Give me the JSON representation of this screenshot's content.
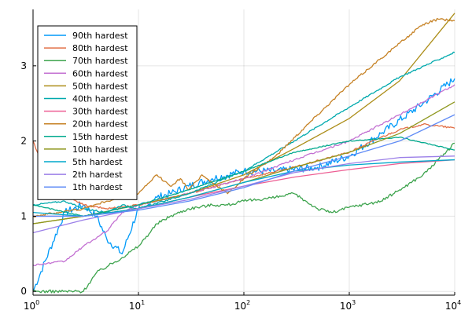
{
  "chart_data": {
    "type": "line",
    "title": "",
    "xlabel": "",
    "ylabel": "",
    "xscale": "log10",
    "xlim": [
      1,
      10000
    ],
    "ylim": [
      -0.05,
      3.75
    ],
    "grid": true,
    "legend_position": "top-left",
    "x_ticks": [
      {
        "value": 1,
        "base": "10",
        "exp": "0"
      },
      {
        "value": 10,
        "base": "10",
        "exp": "1"
      },
      {
        "value": 100,
        "base": "10",
        "exp": "2"
      },
      {
        "value": 1000,
        "base": "10",
        "exp": "3"
      },
      {
        "value": 10000,
        "base": "10",
        "exp": "4"
      }
    ],
    "y_ticks": [
      {
        "value": 0,
        "label": "0"
      },
      {
        "value": 1,
        "label": "1"
      },
      {
        "value": 2,
        "label": "2"
      },
      {
        "value": 3,
        "label": "3"
      }
    ],
    "series": [
      {
        "name": "90th hardest",
        "color": "#009AF9",
        "noise": 0.05,
        "points": [
          [
            1,
            0
          ],
          [
            2,
            1.05
          ],
          [
            3,
            1.15
          ],
          [
            4,
            1.0
          ],
          [
            5,
            0.7
          ],
          [
            7,
            0.5
          ],
          [
            10,
            1.1
          ],
          [
            15,
            1.25
          ],
          [
            20,
            1.3
          ],
          [
            30,
            1.4
          ],
          [
            50,
            1.5
          ],
          [
            100,
            1.6
          ],
          [
            200,
            1.6
          ],
          [
            500,
            1.65
          ],
          [
            1000,
            1.8
          ],
          [
            2000,
            2.1
          ],
          [
            5000,
            2.5
          ],
          [
            10000,
            2.83
          ]
        ]
      },
      {
        "name": "80th hardest",
        "color": "#E26F46",
        "noise": 0.012,
        "points": [
          [
            1,
            2.0
          ],
          [
            1.3,
            1.6
          ],
          [
            2,
            1.3
          ],
          [
            3,
            1.15
          ],
          [
            5,
            1.1
          ],
          [
            10,
            1.15
          ],
          [
            30,
            1.3
          ],
          [
            100,
            1.5
          ],
          [
            300,
            1.65
          ],
          [
            1000,
            1.85
          ],
          [
            2000,
            2.05
          ],
          [
            3000,
            2.15
          ],
          [
            5000,
            2.22
          ],
          [
            7000,
            2.2
          ],
          [
            10000,
            2.17
          ]
        ]
      },
      {
        "name": "70th hardest",
        "color": "#3EA44E",
        "noise": 0.02,
        "points": [
          [
            1,
            0
          ],
          [
            3,
            0
          ],
          [
            4,
            0.25
          ],
          [
            7,
            0.45
          ],
          [
            10,
            0.6
          ],
          [
            15,
            0.9
          ],
          [
            20,
            1.0
          ],
          [
            30,
            1.1
          ],
          [
            50,
            1.15
          ],
          [
            70,
            1.15
          ],
          [
            100,
            1.2
          ],
          [
            200,
            1.25
          ],
          [
            300,
            1.3
          ],
          [
            500,
            1.1
          ],
          [
            700,
            1.05
          ],
          [
            1000,
            1.12
          ],
          [
            2000,
            1.2
          ],
          [
            3000,
            1.35
          ],
          [
            5000,
            1.55
          ],
          [
            7000,
            1.75
          ],
          [
            10000,
            1.97
          ]
        ]
      },
      {
        "name": "60th hardest",
        "color": "#C371D2",
        "noise": 0.012,
        "points": [
          [
            1,
            0.35
          ],
          [
            2,
            0.4
          ],
          [
            3,
            0.6
          ],
          [
            5,
            0.8
          ],
          [
            7,
            1.05
          ],
          [
            10,
            1.15
          ],
          [
            30,
            1.3
          ],
          [
            100,
            1.5
          ],
          [
            300,
            1.75
          ],
          [
            1000,
            2.0
          ],
          [
            3000,
            2.35
          ],
          [
            10000,
            2.75
          ]
        ]
      },
      {
        "name": "50th hardest",
        "color": "#AC8D18",
        "noise": 0,
        "points": [
          [
            1,
            0.9
          ],
          [
            3,
            1.0
          ],
          [
            10,
            1.15
          ],
          [
            30,
            1.3
          ],
          [
            100,
            1.55
          ],
          [
            300,
            1.9
          ],
          [
            1000,
            2.3
          ],
          [
            3000,
            2.8
          ],
          [
            10000,
            3.7
          ]
        ]
      },
      {
        "name": "40th hardest",
        "color": "#00A9AD",
        "noise": 0.01,
        "points": [
          [
            1,
            1.15
          ],
          [
            2,
            1.2
          ],
          [
            3,
            1.1
          ],
          [
            5,
            1.05
          ],
          [
            7,
            1.15
          ],
          [
            10,
            1.1
          ],
          [
            30,
            1.3
          ],
          [
            100,
            1.6
          ],
          [
            300,
            2.0
          ],
          [
            1000,
            2.45
          ],
          [
            3000,
            2.85
          ],
          [
            10000,
            3.18
          ]
        ]
      },
      {
        "name": "30th hardest",
        "color": "#ED5E93",
        "noise": 0,
        "points": [
          [
            1,
            1.0
          ],
          [
            3,
            1.0
          ],
          [
            10,
            1.1
          ],
          [
            30,
            1.25
          ],
          [
            100,
            1.4
          ],
          [
            300,
            1.52
          ],
          [
            1000,
            1.62
          ],
          [
            3000,
            1.7
          ],
          [
            10000,
            1.75
          ]
        ]
      },
      {
        "name": "20th hardest",
        "color": "#C68225",
        "noise": 0.015,
        "points": [
          [
            1,
            1.0
          ],
          [
            3,
            1.1
          ],
          [
            5,
            1.2
          ],
          [
            10,
            1.3
          ],
          [
            15,
            1.55
          ],
          [
            20,
            1.4
          ],
          [
            25,
            1.5
          ],
          [
            30,
            1.35
          ],
          [
            40,
            1.55
          ],
          [
            70,
            1.3
          ],
          [
            100,
            1.5
          ],
          [
            200,
            1.8
          ],
          [
            500,
            2.35
          ],
          [
            1000,
            2.75
          ],
          [
            2000,
            3.1
          ],
          [
            3000,
            3.3
          ],
          [
            5000,
            3.55
          ],
          [
            7000,
            3.62
          ],
          [
            10000,
            3.6
          ]
        ]
      },
      {
        "name": "15th hardest",
        "color": "#00A98D",
        "noise": 0.006,
        "points": [
          [
            1,
            1.15
          ],
          [
            3,
            1.0
          ],
          [
            10,
            1.15
          ],
          [
            30,
            1.35
          ],
          [
            100,
            1.6
          ],
          [
            300,
            1.85
          ],
          [
            1000,
            2.0
          ],
          [
            3000,
            2.05
          ],
          [
            5000,
            1.98
          ],
          [
            10000,
            1.88
          ]
        ]
      },
      {
        "name": "10th hardest",
        "color": "#8E971D",
        "noise": 0,
        "points": [
          [
            1,
            0.9
          ],
          [
            3,
            1.0
          ],
          [
            10,
            1.1
          ],
          [
            30,
            1.25
          ],
          [
            100,
            1.45
          ],
          [
            300,
            1.65
          ],
          [
            1000,
            1.85
          ],
          [
            3000,
            2.1
          ],
          [
            10000,
            2.52
          ]
        ]
      },
      {
        "name": "5th hardest",
        "color": "#00A8CB",
        "noise": 0,
        "points": [
          [
            1,
            1.05
          ],
          [
            3,
            1.0
          ],
          [
            10,
            1.1
          ],
          [
            30,
            1.25
          ],
          [
            100,
            1.45
          ],
          [
            300,
            1.6
          ],
          [
            1000,
            1.68
          ],
          [
            3000,
            1.72
          ],
          [
            10000,
            1.75
          ]
        ]
      },
      {
        "name": "2th hardest",
        "color": "#9B7FE8",
        "noise": 0,
        "points": [
          [
            1,
            0.78
          ],
          [
            3,
            0.95
          ],
          [
            10,
            1.1
          ],
          [
            30,
            1.22
          ],
          [
            100,
            1.4
          ],
          [
            300,
            1.58
          ],
          [
            1000,
            1.7
          ],
          [
            3000,
            1.78
          ],
          [
            10000,
            1.8
          ]
        ]
      },
      {
        "name": "1th hardest",
        "color": "#608CF6",
        "noise": 0,
        "points": [
          [
            1,
            1.0
          ],
          [
            3,
            1.0
          ],
          [
            10,
            1.08
          ],
          [
            30,
            1.2
          ],
          [
            100,
            1.38
          ],
          [
            300,
            1.6
          ],
          [
            1000,
            1.8
          ],
          [
            3000,
            2.0
          ],
          [
            10000,
            2.35
          ]
        ]
      }
    ]
  }
}
